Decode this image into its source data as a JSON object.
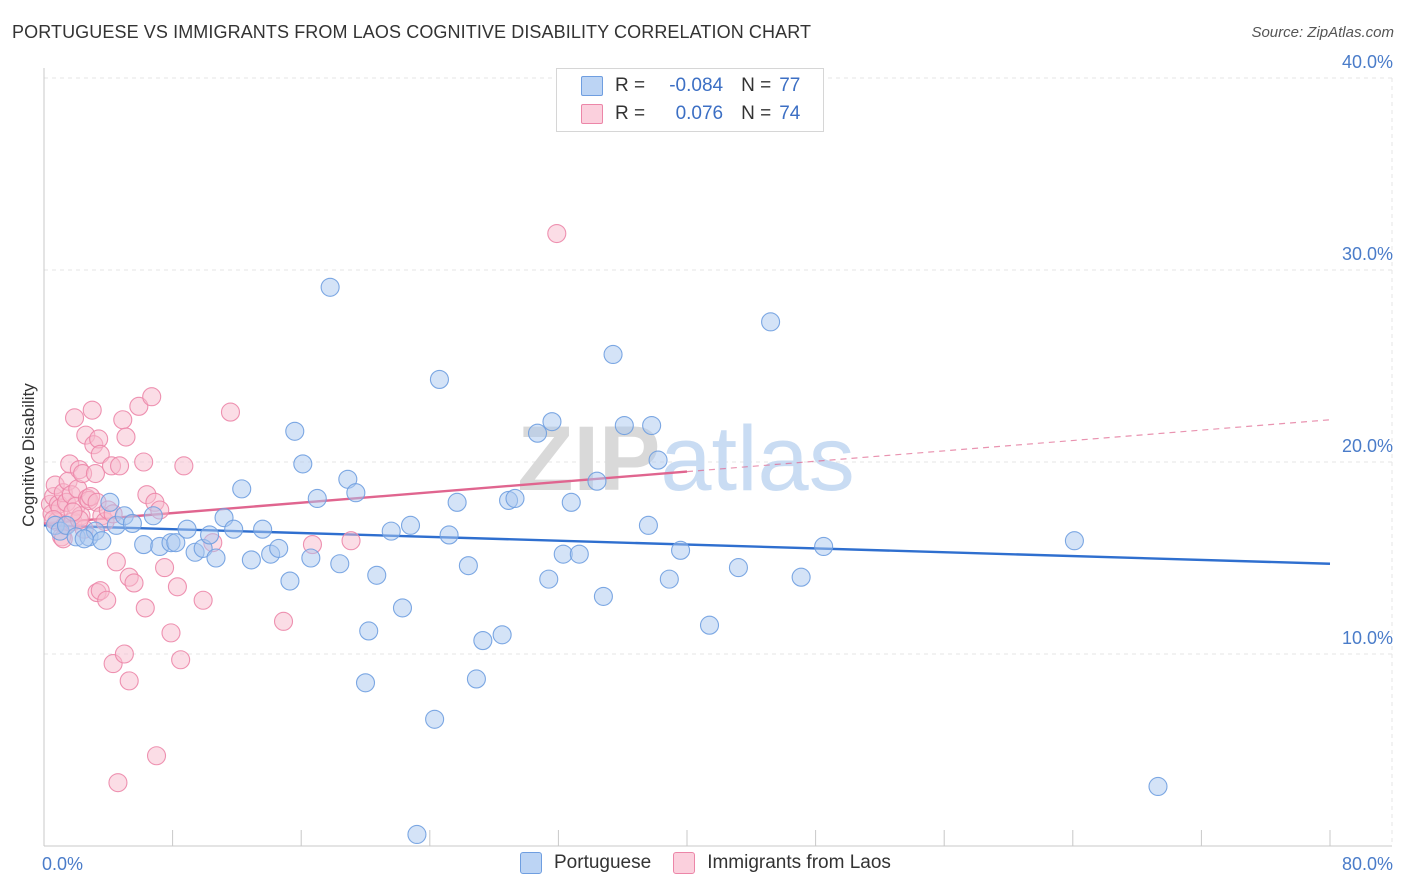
{
  "title": "PORTUGUESE VS IMMIGRANTS FROM LAOS COGNITIVE DISABILITY CORRELATION CHART",
  "source": "Source: ZipAtlas.com",
  "watermark": "ZIPatlas",
  "legend": {
    "rows": [
      {
        "r_label": "R =",
        "r_value": "-0.084",
        "n_label": "N =",
        "n_value": "77",
        "color": "#9fc2ee"
      },
      {
        "r_label": "R =",
        "r_value": "0.076",
        "n_label": "N =",
        "n_value": "74",
        "color": "#f5b3c8"
      }
    ]
  },
  "bottom_legend": [
    {
      "label": "Portuguese",
      "color": "#9fc2ee"
    },
    {
      "label": "Immigrants from Laos",
      "color": "#f5b3c8"
    }
  ],
  "colors": {
    "blue_fill": "#a9c8f0",
    "blue_stroke": "#6f9ee0",
    "blue_line": "#2f6fcf",
    "pink_fill": "#f7bccd",
    "pink_stroke": "#ec86a8",
    "pink_line": "#e0658f",
    "grid": "#e4e4e4",
    "axis_label": "#4a7cc9"
  },
  "chart_data": {
    "type": "scatter",
    "ylabel": "Cognitive Disability",
    "xlim": [
      0,
      80
    ],
    "ylim": [
      0,
      40
    ],
    "x_tick_labels": [
      "0.0%",
      "80.0%"
    ],
    "y_ticks": [
      10,
      20,
      30,
      40
    ],
    "y_tick_labels": [
      "10.0%",
      "20.0%",
      "30.0%",
      "40.0%"
    ],
    "grid": true,
    "series": [
      {
        "name": "Portuguese",
        "color": "#6f9ee0",
        "trend": {
          "x": [
            0,
            80
          ],
          "y": [
            16.7,
            14.7
          ],
          "solid_until": 80
        },
        "points": [
          [
            0.7,
            16.7
          ],
          [
            1.0,
            16.4
          ],
          [
            1.4,
            16.7
          ],
          [
            2.0,
            16.1
          ],
          [
            2.8,
            16.1
          ],
          [
            3.2,
            16.4
          ],
          [
            3.6,
            15.9
          ],
          [
            4.1,
            17.9
          ],
          [
            4.5,
            16.7
          ],
          [
            5.0,
            17.2
          ],
          [
            5.5,
            16.8
          ],
          [
            6.2,
            15.7
          ],
          [
            6.8,
            17.2
          ],
          [
            7.2,
            15.6
          ],
          [
            7.9,
            15.8
          ],
          [
            8.2,
            15.8
          ],
          [
            8.9,
            16.5
          ],
          [
            9.4,
            15.3
          ],
          [
            9.9,
            15.5
          ],
          [
            10.3,
            16.2
          ],
          [
            10.7,
            15.0
          ],
          [
            11.2,
            17.1
          ],
          [
            11.8,
            16.5
          ],
          [
            12.3,
            18.6
          ],
          [
            12.9,
            14.9
          ],
          [
            13.6,
            16.5
          ],
          [
            14.1,
            15.2
          ],
          [
            14.6,
            15.5
          ],
          [
            15.3,
            13.8
          ],
          [
            15.6,
            21.6
          ],
          [
            16.1,
            19.9
          ],
          [
            16.6,
            15.0
          ],
          [
            17.0,
            18.1
          ],
          [
            17.8,
            29.1
          ],
          [
            18.4,
            14.7
          ],
          [
            18.9,
            19.1
          ],
          [
            19.4,
            18.4
          ],
          [
            20.0,
            8.5
          ],
          [
            20.2,
            11.2
          ],
          [
            20.7,
            14.1
          ],
          [
            21.6,
            16.4
          ],
          [
            22.3,
            12.4
          ],
          [
            22.8,
            16.7
          ],
          [
            23.2,
            0.6
          ],
          [
            24.3,
            6.6
          ],
          [
            24.6,
            24.3
          ],
          [
            25.2,
            16.2
          ],
          [
            25.7,
            17.9
          ],
          [
            26.4,
            14.6
          ],
          [
            26.9,
            8.7
          ],
          [
            27.3,
            10.7
          ],
          [
            28.5,
            11.0
          ],
          [
            28.9,
            18.0
          ],
          [
            29.3,
            18.1
          ],
          [
            30.7,
            21.5
          ],
          [
            31.4,
            13.9
          ],
          [
            31.6,
            22.1
          ],
          [
            32.3,
            15.2
          ],
          [
            32.8,
            17.9
          ],
          [
            33.3,
            15.2
          ],
          [
            34.4,
            19.0
          ],
          [
            34.8,
            13.0
          ],
          [
            35.4,
            25.6
          ],
          [
            36.1,
            21.9
          ],
          [
            37.6,
            16.7
          ],
          [
            37.8,
            21.9
          ],
          [
            38.2,
            20.1
          ],
          [
            38.9,
            13.9
          ],
          [
            39.6,
            15.4
          ],
          [
            41.4,
            11.5
          ],
          [
            43.2,
            14.5
          ],
          [
            45.2,
            27.3
          ],
          [
            47.1,
            14.0
          ],
          [
            48.5,
            15.6
          ],
          [
            64.1,
            15.9
          ],
          [
            69.3,
            3.1
          ],
          [
            2.5,
            16.0
          ]
        ]
      },
      {
        "name": "Immigrants from Laos",
        "color": "#ec86a8",
        "trend": {
          "x": [
            0,
            80
          ],
          "y": [
            16.8,
            22.2
          ],
          "solid_until": 40
        },
        "points": [
          [
            0.4,
            17.8
          ],
          [
            0.5,
            17.3
          ],
          [
            0.6,
            18.2
          ],
          [
            0.7,
            18.8
          ],
          [
            0.8,
            16.9
          ],
          [
            0.9,
            17.8
          ],
          [
            1.0,
            17.6
          ],
          [
            1.1,
            16.1
          ],
          [
            1.2,
            18.4
          ],
          [
            1.3,
            16.7
          ],
          [
            1.4,
            17.9
          ],
          [
            1.5,
            19.0
          ],
          [
            1.6,
            19.9
          ],
          [
            1.7,
            18.3
          ],
          [
            1.8,
            16.9
          ],
          [
            1.9,
            22.3
          ],
          [
            2.0,
            17.7
          ],
          [
            2.1,
            18.6
          ],
          [
            2.2,
            19.6
          ],
          [
            2.3,
            17.2
          ],
          [
            2.4,
            19.4
          ],
          [
            2.5,
            16.5
          ],
          [
            2.6,
            21.4
          ],
          [
            2.7,
            18.1
          ],
          [
            2.8,
            18.0
          ],
          [
            2.9,
            18.2
          ],
          [
            3.0,
            22.7
          ],
          [
            3.1,
            20.9
          ],
          [
            3.2,
            19.4
          ],
          [
            3.3,
            17.9
          ],
          [
            3.4,
            21.2
          ],
          [
            3.5,
            20.4
          ],
          [
            3.6,
            17.2
          ],
          [
            3.8,
            16.9
          ],
          [
            4.0,
            17.5
          ],
          [
            4.2,
            19.8
          ],
          [
            4.3,
            17.3
          ],
          [
            4.5,
            14.8
          ],
          [
            4.7,
            19.8
          ],
          [
            4.9,
            22.2
          ],
          [
            5.1,
            21.3
          ],
          [
            5.3,
            14.0
          ],
          [
            5.6,
            13.7
          ],
          [
            5.9,
            22.9
          ],
          [
            6.2,
            20.0
          ],
          [
            6.4,
            18.3
          ],
          [
            6.7,
            23.4
          ],
          [
            6.9,
            17.9
          ],
          [
            7.2,
            17.5
          ],
          [
            7.5,
            14.5
          ],
          [
            7.9,
            11.1
          ],
          [
            8.3,
            13.5
          ],
          [
            8.5,
            9.7
          ],
          [
            8.7,
            19.8
          ],
          [
            9.9,
            12.8
          ],
          [
            10.5,
            15.8
          ],
          [
            11.6,
            22.6
          ],
          [
            14.9,
            11.7
          ],
          [
            16.7,
            15.7
          ],
          [
            19.1,
            15.9
          ],
          [
            31.9,
            31.9
          ],
          [
            3.3,
            13.2
          ],
          [
            3.5,
            13.3
          ],
          [
            3.9,
            12.8
          ],
          [
            4.3,
            9.5
          ],
          [
            4.6,
            3.3
          ],
          [
            5.0,
            10.0
          ],
          [
            5.3,
            8.6
          ],
          [
            6.3,
            12.4
          ],
          [
            7.0,
            4.7
          ],
          [
            1.2,
            16.0
          ],
          [
            0.6,
            17.0
          ],
          [
            2.2,
            17.0
          ],
          [
            1.8,
            17.4
          ]
        ]
      }
    ]
  }
}
